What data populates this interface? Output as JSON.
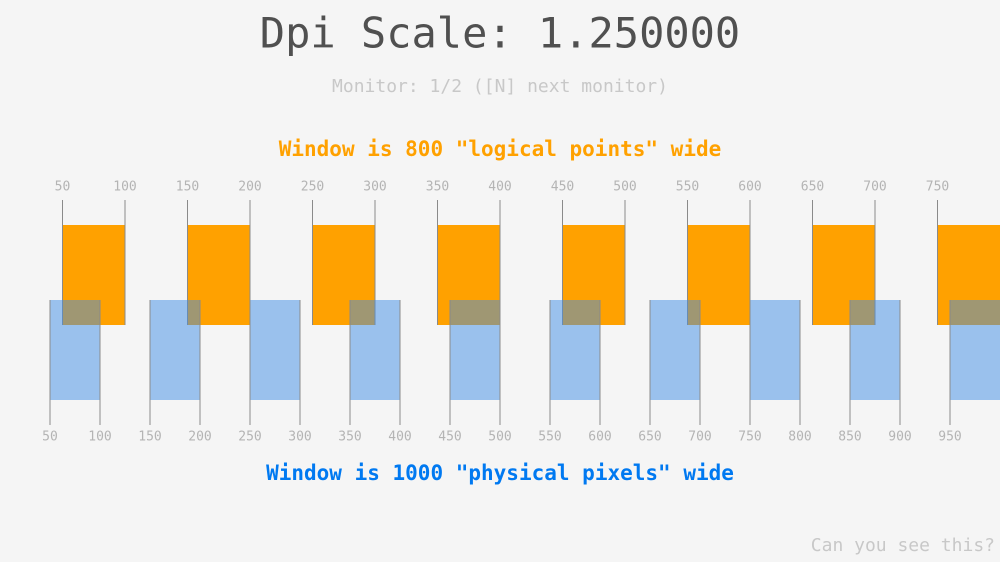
{
  "header": {
    "title": "Dpi Scale: 1.250000",
    "subtitle": "Monitor: 1/2 ([N] next monitor)"
  },
  "logical": {
    "caption": "Window is 800 \"logical points\" wide",
    "ticks": [
      50,
      100,
      150,
      200,
      250,
      300,
      350,
      400,
      450,
      500,
      550,
      600,
      650,
      700,
      750
    ]
  },
  "physical": {
    "caption": "Window is 1000 \"physical pixels\" wide",
    "ticks": [
      50,
      100,
      150,
      200,
      250,
      300,
      350,
      400,
      450,
      500,
      550,
      600,
      650,
      700,
      750,
      800,
      850,
      900,
      950
    ]
  },
  "footer": {
    "text": "Can you see this?"
  }
}
